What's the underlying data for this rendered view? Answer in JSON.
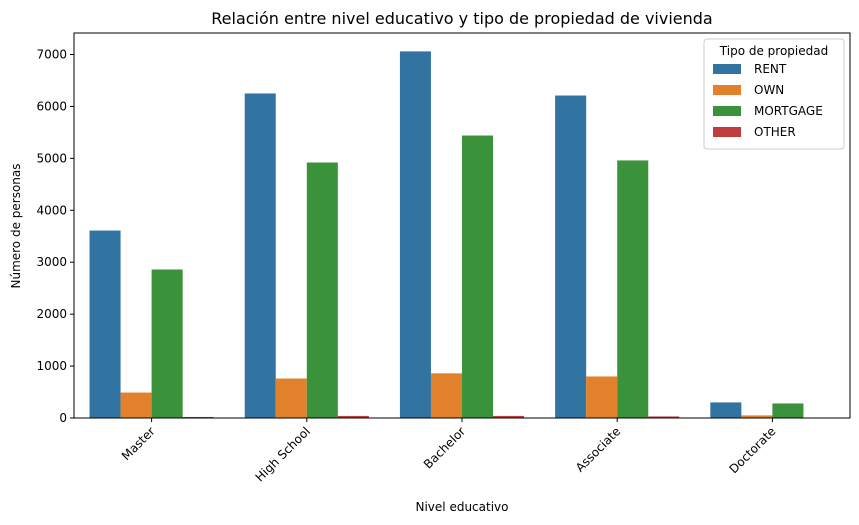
{
  "chart_data": {
    "type": "bar",
    "title": "Relación entre nivel educativo y tipo de propiedad de vivienda",
    "xlabel": "Nivel educativo",
    "ylabel": "Número de personas",
    "categories": [
      "Master",
      "High School",
      "Bachelor",
      "Associate",
      "Doctorate"
    ],
    "series": [
      {
        "name": "RENT",
        "values": [
          3610,
          6250,
          7060,
          6210,
          300
        ],
        "color": "#3274a1"
      },
      {
        "name": "OWN",
        "values": [
          490,
          760,
          860,
          800,
          50
        ],
        "color": "#e1812c"
      },
      {
        "name": "MORTGAGE",
        "values": [
          2860,
          4920,
          5440,
          4960,
          280
        ],
        "color": "#3a923a"
      },
      {
        "name": "OTHER",
        "values": [
          20,
          40,
          40,
          30,
          2
        ],
        "color": "#c03d3e"
      }
    ],
    "ylim": [
      0,
      7414
    ],
    "yticks": [
      0,
      1000,
      2000,
      3000,
      4000,
      5000,
      6000,
      7000
    ],
    "legend": {
      "title": "Tipo de propiedad",
      "placement": "top-right"
    },
    "grid": false
  }
}
